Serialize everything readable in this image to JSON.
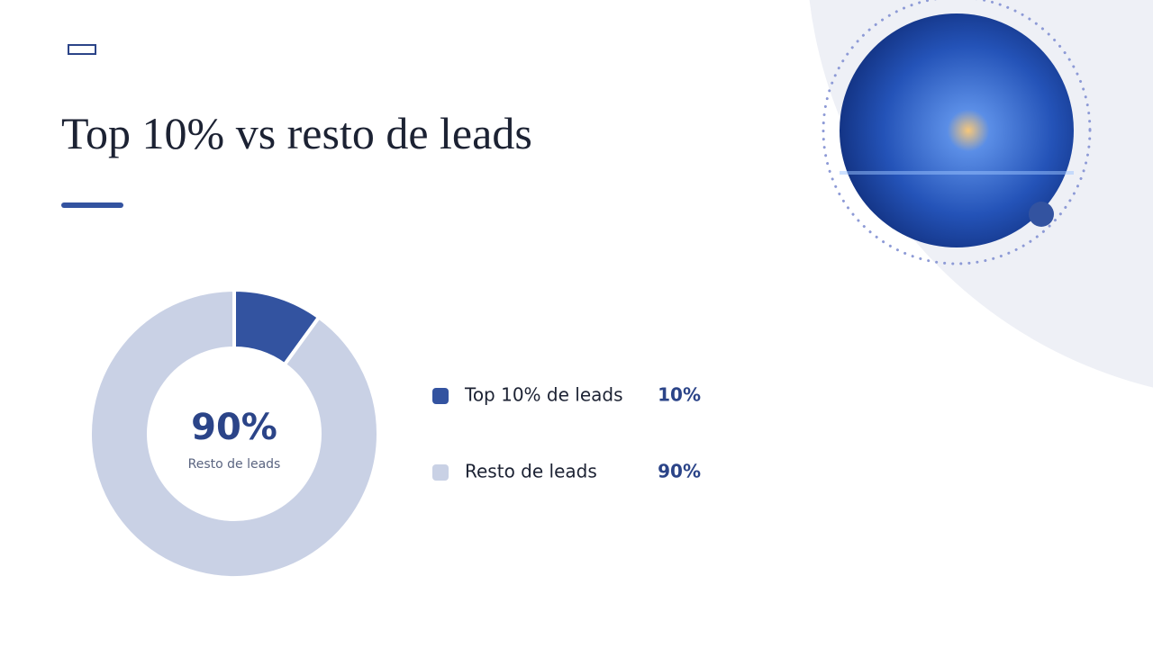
{
  "chart_data": {
    "type": "pie",
    "donut": true,
    "title": "Top 10% vs resto de leads",
    "categories": [
      "Top 10% de leads",
      "Resto de leads"
    ],
    "values": [
      10,
      90
    ],
    "value_labels": [
      "10%",
      "90%"
    ],
    "colors": [
      "#3353a0",
      "#c9d1e5"
    ]
  }
}
